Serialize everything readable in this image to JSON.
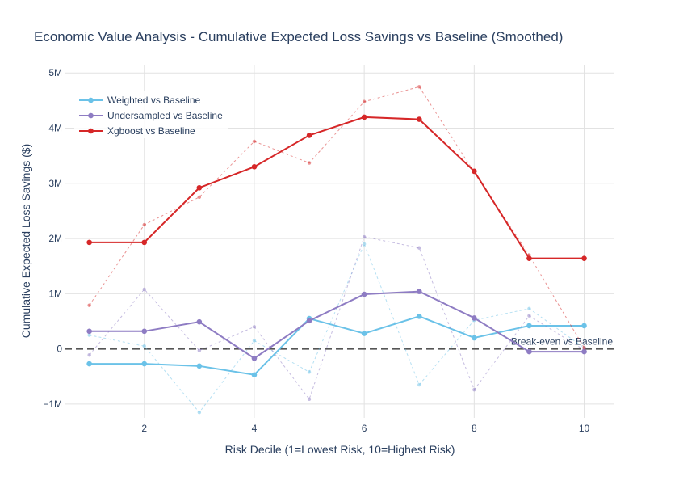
{
  "chart_data": {
    "type": "line",
    "title": "Economic Value Analysis - Cumulative Expected Loss Savings vs Baseline (Smoothed)",
    "xlabel": "Risk Decile (1=Lowest Risk, 10=Highest Risk)",
    "ylabel": "Cumulative Expected Loss Savings ($)",
    "x": [
      1,
      2,
      3,
      4,
      5,
      6,
      7,
      8,
      9,
      10
    ],
    "xlim": [
      0.55,
      10.55
    ],
    "ylim": [
      -1250000,
      5150000
    ],
    "x_ticks": [
      2,
      4,
      6,
      8,
      10
    ],
    "x_tick_labels": [
      "2",
      "4",
      "6",
      "8",
      "10"
    ],
    "y_ticks": [
      -1000000,
      0,
      1000000,
      2000000,
      3000000,
      4000000,
      5000000
    ],
    "y_tick_labels": [
      "−1M",
      "0",
      "1M",
      "2M",
      "3M",
      "4M",
      "5M"
    ],
    "grid": true,
    "legend_position": "top-left",
    "series": [
      {
        "name": "Weighted vs Baseline",
        "color": "#6bc2e8",
        "values": [
          -270000,
          -270000,
          -310000,
          -470000,
          550000,
          280000,
          590000,
          200000,
          420000,
          420000
        ],
        "raw_values": [
          250000,
          50000,
          -1150000,
          150000,
          -420000,
          1900000,
          -650000,
          520000,
          730000,
          20000
        ]
      },
      {
        "name": "Undersampled vs Baseline",
        "color": "#8e7cc3",
        "values": [
          320000,
          320000,
          490000,
          -170000,
          510000,
          990000,
          1040000,
          560000,
          -50000,
          -50000
        ],
        "raw_values": [
          -110000,
          1080000,
          -30000,
          400000,
          -910000,
          2030000,
          1830000,
          -740000,
          600000,
          -20000
        ]
      },
      {
        "name": "Xgboost vs Baseline",
        "color": "#d62728",
        "values": [
          1930000,
          1930000,
          2920000,
          3300000,
          3870000,
          4200000,
          4160000,
          3220000,
          1640000,
          1640000
        ],
        "raw_values": [
          790000,
          2250000,
          2750000,
          3760000,
          3370000,
          4480000,
          4750000,
          3200000,
          1700000,
          20000
        ]
      }
    ],
    "reference_line": {
      "y": 0,
      "label": "Break-even vs Baseline",
      "color": "#555555"
    }
  }
}
